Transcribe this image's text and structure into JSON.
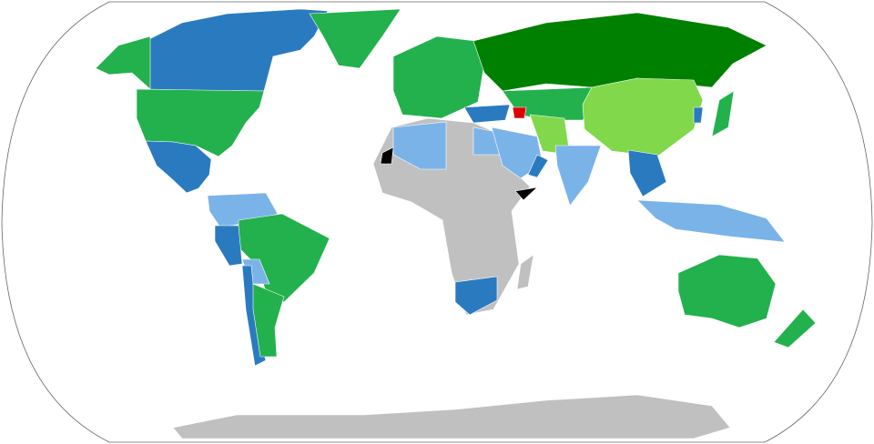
{
  "map": {
    "projection": "robinson",
    "colors": {
      "dark_green": "#008000",
      "green": "#22b14c",
      "light_green": "#80d84a",
      "blue": "#2a7ac0",
      "light_blue": "#7ab3e8",
      "grey": "#c0c0c0",
      "red": "#e00000",
      "black": "#000000",
      "ocean": "#ffffff",
      "outline": "#666666"
    }
  }
}
